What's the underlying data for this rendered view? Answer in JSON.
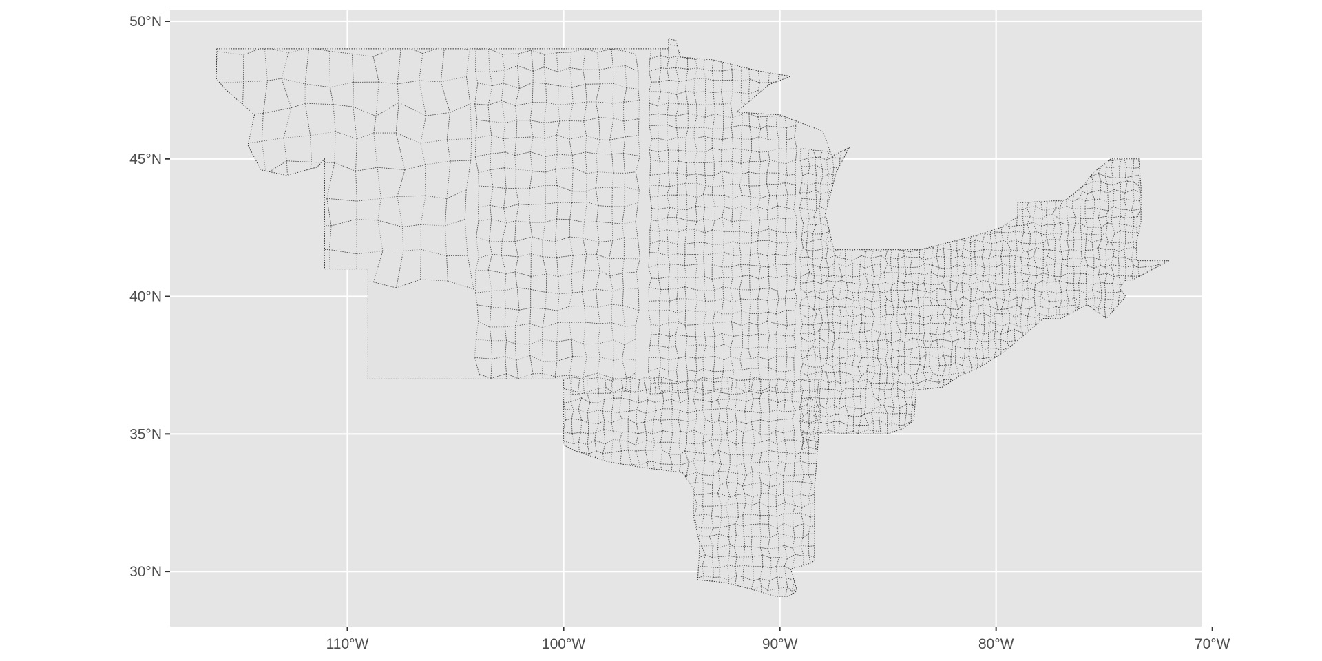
{
  "map": {
    "projection": "longitude-latitude",
    "extent": {
      "lon": [
        -118.2,
        -70.5
      ],
      "lat": [
        28.0,
        50.4
      ]
    },
    "panel_background": "#e5e5e5",
    "gridline_color": "#ffffff",
    "region_fill": "#e3e3e3",
    "boundary_color": "#333333",
    "boundary_style": "dotted county boundaries",
    "x_ticks": [
      {
        "value": -110,
        "label": "110°W"
      },
      {
        "value": -100,
        "label": "100°W"
      },
      {
        "value": -90,
        "label": "90°W"
      },
      {
        "value": -80,
        "label": "80°W"
      },
      {
        "value": -70,
        "label": "70°W"
      }
    ],
    "y_ticks": [
      {
        "value": 50,
        "label": "50°N"
      },
      {
        "value": 45,
        "label": "45°N"
      },
      {
        "value": 40,
        "label": "40°N"
      },
      {
        "value": 35,
        "label": "35°N"
      },
      {
        "value": 30,
        "label": "30°N"
      }
    ],
    "region_outline": [
      [
        -116.05,
        49.0
      ],
      [
        -95.15,
        49.0
      ],
      [
        -95.15,
        49.38
      ],
      [
        -94.8,
        49.3
      ],
      [
        -94.6,
        48.7
      ],
      [
        -93.1,
        48.6
      ],
      [
        -91.0,
        48.2
      ],
      [
        -89.5,
        48.0
      ],
      [
        -90.5,
        47.7
      ],
      [
        -92.0,
        46.7
      ],
      [
        -90.0,
        46.6
      ],
      [
        -88.0,
        46.0
      ],
      [
        -87.6,
        45.1
      ],
      [
        -86.8,
        45.4
      ],
      [
        -87.4,
        44.5
      ],
      [
        -87.9,
        43.0
      ],
      [
        -87.5,
        41.7
      ],
      [
        -86.8,
        41.7
      ],
      [
        -84.8,
        41.7
      ],
      [
        -83.5,
        41.7
      ],
      [
        -81.0,
        42.2
      ],
      [
        -79.8,
        42.5
      ],
      [
        -79.0,
        42.9
      ],
      [
        -79.0,
        43.4
      ],
      [
        -76.8,
        43.5
      ],
      [
        -76.0,
        44.0
      ],
      [
        -75.5,
        44.5
      ],
      [
        -74.7,
        45.0
      ],
      [
        -73.4,
        45.0
      ],
      [
        -73.3,
        44.0
      ],
      [
        -73.3,
        42.7
      ],
      [
        -73.5,
        42.0
      ],
      [
        -73.5,
        41.3
      ],
      [
        -72.0,
        41.3
      ],
      [
        -73.7,
        40.6
      ],
      [
        -74.0,
        40.6
      ],
      [
        -74.3,
        40.3
      ],
      [
        -74.0,
        40.0
      ],
      [
        -74.9,
        39.2
      ],
      [
        -75.6,
        39.6
      ],
      [
        -75.8,
        39.7
      ],
      [
        -77.0,
        39.2
      ],
      [
        -77.8,
        39.2
      ],
      [
        -78.4,
        38.8
      ],
      [
        -79.6,
        38.0
      ],
      [
        -80.8,
        37.4
      ],
      [
        -81.7,
        37.1
      ],
      [
        -82.5,
        36.7
      ],
      [
        -83.7,
        36.6
      ],
      [
        -83.8,
        35.5
      ],
      [
        -84.3,
        35.2
      ],
      [
        -85.0,
        35.0
      ],
      [
        -88.2,
        35.0
      ],
      [
        -88.4,
        33.0
      ],
      [
        -88.4,
        30.4
      ],
      [
        -88.6,
        30.3
      ],
      [
        -89.0,
        30.2
      ],
      [
        -89.5,
        30.1
      ],
      [
        -89.2,
        29.3
      ],
      [
        -89.6,
        29.1
      ],
      [
        -90.2,
        29.1
      ],
      [
        -91.5,
        29.4
      ],
      [
        -92.5,
        29.6
      ],
      [
        -93.8,
        29.7
      ],
      [
        -93.7,
        31.0
      ],
      [
        -94.0,
        32.0
      ],
      [
        -94.0,
        33.0
      ],
      [
        -94.5,
        33.6
      ],
      [
        -96.5,
        33.8
      ],
      [
        -98.0,
        34.0
      ],
      [
        -99.5,
        34.4
      ],
      [
        -100.0,
        34.6
      ],
      [
        -100.0,
        37.0
      ],
      [
        -103.0,
        37.0
      ],
      [
        -109.05,
        37.0
      ],
      [
        -109.05,
        41.0
      ],
      [
        -111.05,
        41.0
      ],
      [
        -111.05,
        45.0
      ],
      [
        -111.4,
        44.7
      ],
      [
        -112.8,
        44.4
      ],
      [
        -114.0,
        44.6
      ],
      [
        -114.6,
        45.5
      ],
      [
        -114.3,
        46.6
      ],
      [
        -115.6,
        47.5
      ],
      [
        -116.05,
        47.9
      ]
    ]
  }
}
